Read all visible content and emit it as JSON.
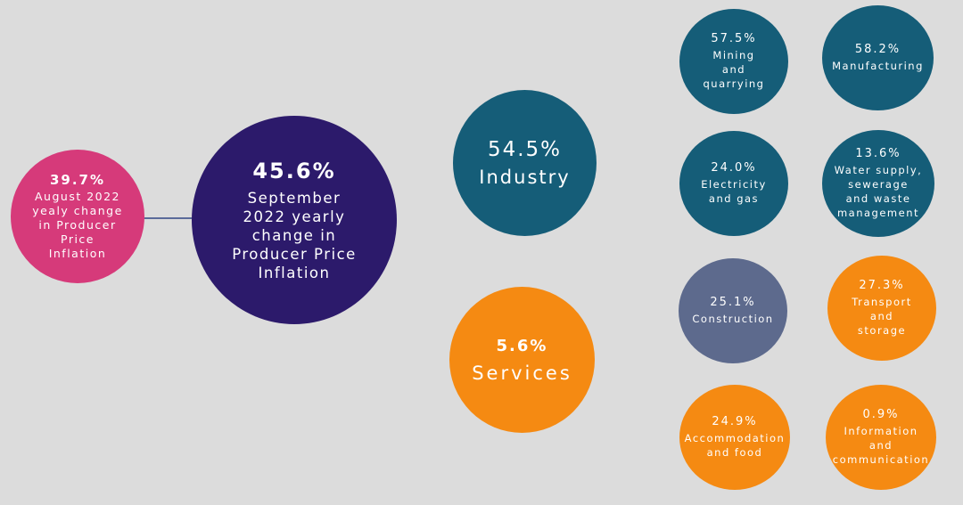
{
  "colors": {
    "background": "#dcdcdc",
    "august": "#d63a7a",
    "september": "#2c1a6b",
    "industry": "#155d78",
    "services": "#f58a12",
    "construction": "#5d6a8d"
  },
  "august": {
    "value": "39.7%",
    "label": "August 2022\nyealy change\nin Producer\nPrice\nInflation"
  },
  "september": {
    "value": "45.6%",
    "label": "September\n2022 yearly\nchange in\nProducer Price\nInflation"
  },
  "industry": {
    "value": "54.5%",
    "label": "Industry"
  },
  "services": {
    "value": "5.6%",
    "label": "Services"
  },
  "sectors": [
    {
      "value": "57.5%",
      "label": "Mining\nand\nquarrying"
    },
    {
      "value": "58.2%",
      "label": "Manufacturing"
    },
    {
      "value": "24.0%",
      "label": "Electricity\nand gas"
    },
    {
      "value": "13.6%",
      "label": "Water supply,\nsewerage\nand waste\nmanagement"
    },
    {
      "value": "25.1%",
      "label": "Construction"
    },
    {
      "value": "27.3%",
      "label": "Transport\nand\nstorage"
    },
    {
      "value": "24.9%",
      "label": "Accommodation\nand food"
    },
    {
      "value": "0.9%",
      "label": "Information\nand\ncommunication"
    }
  ]
}
